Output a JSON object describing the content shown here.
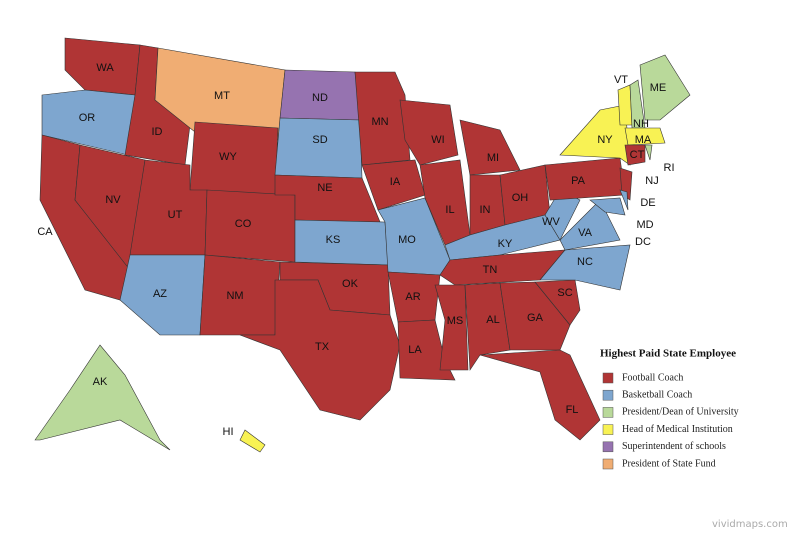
{
  "legend_title": "Highest Paid State Employee",
  "legend": [
    {
      "label": "Football Coach",
      "color": "#b03535"
    },
    {
      "label": "Basketball Coach",
      "color": "#7ea6cf"
    },
    {
      "label": "President/Dean of University",
      "color": "#b9d99a"
    },
    {
      "label": "Head of Medical Institution",
      "color": "#f8f254"
    },
    {
      "label": "Superintendent of schools",
      "color": "#9673b0"
    },
    {
      "label": "President of State Fund",
      "color": "#f0ad73"
    }
  ],
  "states": [
    {
      "label": "WA",
      "category": 0
    },
    {
      "label": "OR",
      "category": 1
    },
    {
      "label": "CA",
      "category": 0
    },
    {
      "label": "NV",
      "category": 0
    },
    {
      "label": "ID",
      "category": 0
    },
    {
      "label": "MT",
      "category": 5
    },
    {
      "label": "WY",
      "category": 0
    },
    {
      "label": "UT",
      "category": 0
    },
    {
      "label": "CO",
      "category": 0
    },
    {
      "label": "AZ",
      "category": 1
    },
    {
      "label": "NM",
      "category": 0
    },
    {
      "label": "ND",
      "category": 4
    },
    {
      "label": "SD",
      "category": 1
    },
    {
      "label": "NE",
      "category": 0
    },
    {
      "label": "KS",
      "category": 1
    },
    {
      "label": "OK",
      "category": 0
    },
    {
      "label": "TX",
      "category": 0
    },
    {
      "label": "MN",
      "category": 0
    },
    {
      "label": "IA",
      "category": 0
    },
    {
      "label": "MO",
      "category": 1
    },
    {
      "label": "AR",
      "category": 0
    },
    {
      "label": "LA",
      "category": 0
    },
    {
      "label": "WI",
      "category": 0
    },
    {
      "label": "IL",
      "category": 0
    },
    {
      "label": "MI",
      "category": 0
    },
    {
      "label": "IN",
      "category": 0
    },
    {
      "label": "OH",
      "category": 0
    },
    {
      "label": "KY",
      "category": 1
    },
    {
      "label": "TN",
      "category": 0
    },
    {
      "label": "MS",
      "category": 0
    },
    {
      "label": "AL",
      "category": 0
    },
    {
      "label": "GA",
      "category": 0
    },
    {
      "label": "FL",
      "category": 0
    },
    {
      "label": "SC",
      "category": 0
    },
    {
      "label": "NC",
      "category": 1
    },
    {
      "label": "VA",
      "category": 1
    },
    {
      "label": "WV",
      "category": 1
    },
    {
      "label": "PA",
      "category": 0
    },
    {
      "label": "NY",
      "category": 3
    },
    {
      "label": "NJ",
      "category": 0
    },
    {
      "label": "MD",
      "category": 1
    },
    {
      "label": "DE",
      "category": 1
    },
    {
      "label": "DC",
      "category": null
    },
    {
      "label": "VT",
      "category": 3
    },
    {
      "label": "NH",
      "category": 2
    },
    {
      "label": "ME",
      "category": 2
    },
    {
      "label": "MA",
      "category": 3
    },
    {
      "label": "CT",
      "category": 0
    },
    {
      "label": "RI",
      "category": 2
    },
    {
      "label": "AK",
      "category": 2
    },
    {
      "label": "HI",
      "category": 3
    }
  ],
  "watermark": "vividmaps.com"
}
